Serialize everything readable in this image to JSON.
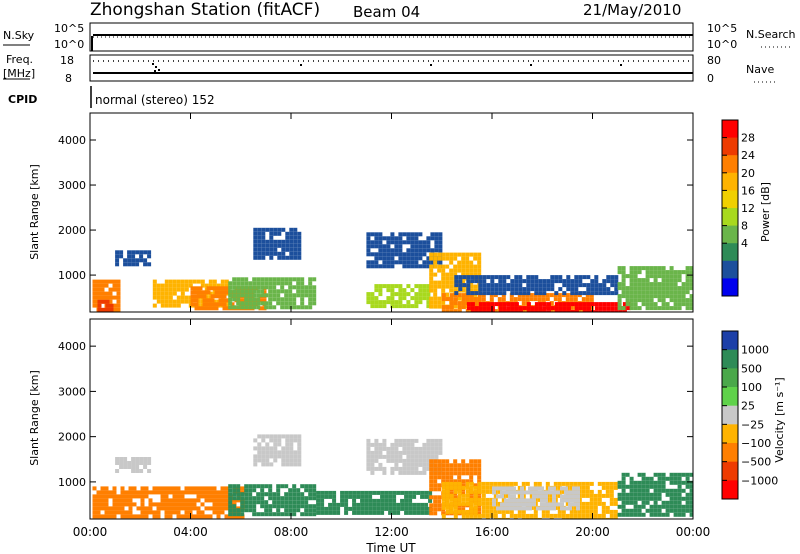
{
  "header": {
    "station": "Zhongshan Station (fitACF)",
    "beam": "Beam 04",
    "date": "21/May/2010"
  },
  "top_panels": {
    "nsky_label": "N.Sky",
    "nsky_ticks": [
      "10^5",
      "10^0"
    ],
    "nsearch_label": "N.Search",
    "nsearch_ticks": [
      "10^5",
      "10^0"
    ],
    "freq_label_1": "Freq.",
    "freq_label_2": "[MHz]",
    "freq_ticks": [
      "18",
      "8"
    ],
    "nave_label": "Nave",
    "nave_ticks": [
      "80",
      "0"
    ],
    "cpid_label": "CPID",
    "cpid_text": "normal (stereo) 152"
  },
  "chart_data": [
    {
      "type": "heatmap",
      "name": "power",
      "ylabel": "Slant Range [km]",
      "ylim": [
        180,
        4600
      ],
      "yticks": [
        "1000",
        "2000",
        "3000",
        "4000"
      ],
      "xlim": [
        0,
        24
      ],
      "colorbar": {
        "label": "Power [dB]",
        "ticks": [
          "28",
          "24",
          "20",
          "16",
          "12",
          "8",
          "4"
        ],
        "colors": [
          "#ff0000",
          "#ee3b00",
          "#ff7f00",
          "#ffb300",
          "#f0d000",
          "#a8d91e",
          "#6ab54a",
          "#2e8b57",
          "#1c4f9c",
          "#0000ee"
        ]
      },
      "regions": [
        {
          "x0": 0.1,
          "x1": 1.2,
          "y0": 200,
          "y1": 900,
          "v": "#ff7f00"
        },
        {
          "x0": 0.3,
          "x1": 0.9,
          "y0": 200,
          "y1": 450,
          "v": "#ee3b00"
        },
        {
          "x0": 1.0,
          "x1": 2.4,
          "y0": 1250,
          "y1": 1550,
          "v": "#1c4f9c"
        },
        {
          "x0": 2.5,
          "x1": 5.5,
          "y0": 300,
          "y1": 900,
          "v": "#ffb300"
        },
        {
          "x0": 4.0,
          "x1": 7.0,
          "y0": 300,
          "y1": 750,
          "v": "#ff7f00"
        },
        {
          "x0": 5.5,
          "x1": 9.0,
          "y0": 300,
          "y1": 950,
          "v": "#6ab54a"
        },
        {
          "x0": 6.5,
          "x1": 8.3,
          "y0": 1350,
          "y1": 2050,
          "v": "#1c4f9c"
        },
        {
          "x0": 11.0,
          "x1": 14.0,
          "y0": 1200,
          "y1": 1950,
          "v": "#1c4f9c"
        },
        {
          "x0": 11.0,
          "x1": 13.5,
          "y0": 300,
          "y1": 800,
          "v": "#a8d91e"
        },
        {
          "x0": 13.5,
          "x1": 15.5,
          "y0": 300,
          "y1": 1500,
          "v": "#ffb300"
        },
        {
          "x0": 14.0,
          "x1": 20.0,
          "y0": 200,
          "y1": 600,
          "v": "#ff7f00"
        },
        {
          "x0": 15.0,
          "x1": 21.5,
          "y0": 200,
          "y1": 400,
          "v": "#ff0000"
        },
        {
          "x0": 14.5,
          "x1": 21.0,
          "y0": 600,
          "y1": 1000,
          "v": "#1c4f9c"
        },
        {
          "x0": 21.0,
          "x1": 24.0,
          "y0": 300,
          "y1": 1200,
          "v": "#6ab54a"
        }
      ]
    },
    {
      "type": "heatmap",
      "name": "velocity",
      "ylabel": "Slant Range [km]",
      "ylim": [
        180,
        4600
      ],
      "yticks": [
        "1000",
        "2000",
        "3000",
        "4000"
      ],
      "xlim": [
        0,
        24
      ],
      "xticks": [
        "00:00",
        "04:00",
        "08:00",
        "12:00",
        "16:00",
        "20:00",
        "00:00"
      ],
      "xlabel": "Time UT",
      "colorbar": {
        "label": "Velocity [m s⁻¹]",
        "ticks": [
          "1000",
          "500",
          "100",
          "25",
          "−25",
          "−100",
          "−500",
          "−1000"
        ],
        "colors": [
          "#1c3fa8",
          "#2e8b57",
          "#4aa84a",
          "#5fd24a",
          "#c8c8c8",
          "#ffb300",
          "#ff7f00",
          "#ee3b00",
          "#ff0000"
        ]
      },
      "regions": [
        {
          "x0": 0.1,
          "x1": 6.0,
          "y0": 200,
          "y1": 900,
          "v": "#ff7f00"
        },
        {
          "x0": 1.0,
          "x1": 2.4,
          "y0": 1250,
          "y1": 1550,
          "v": "#c8c8c8"
        },
        {
          "x0": 5.5,
          "x1": 9.0,
          "y0": 300,
          "y1": 950,
          "v": "#2e8b57"
        },
        {
          "x0": 6.5,
          "x1": 8.3,
          "y0": 1350,
          "y1": 2050,
          "v": "#c8c8c8"
        },
        {
          "x0": 9.0,
          "x1": 13.5,
          "y0": 300,
          "y1": 800,
          "v": "#2e8b57"
        },
        {
          "x0": 11.0,
          "x1": 14.0,
          "y0": 1200,
          "y1": 1950,
          "v": "#c8c8c8"
        },
        {
          "x0": 13.5,
          "x1": 15.5,
          "y0": 300,
          "y1": 1500,
          "v": "#ff7f00"
        },
        {
          "x0": 14.0,
          "x1": 21.0,
          "y0": 200,
          "y1": 1000,
          "v": "#ffb300"
        },
        {
          "x0": 16.0,
          "x1": 19.5,
          "y0": 400,
          "y1": 900,
          "v": "#c8c8c8"
        },
        {
          "x0": 21.0,
          "x1": 24.0,
          "y0": 300,
          "y1": 1200,
          "v": "#2e8b57"
        }
      ]
    }
  ]
}
